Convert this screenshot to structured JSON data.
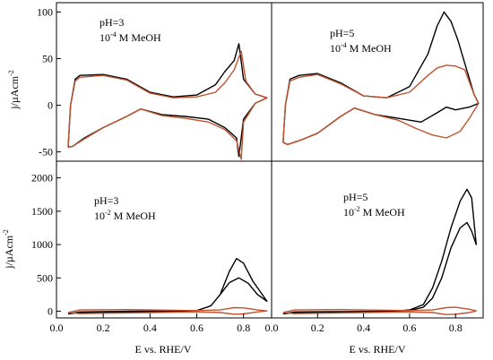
{
  "chart_data": [
    {
      "type": "line",
      "panel": "top-left",
      "annotation": {
        "line1": "pH=3",
        "line2_base": "10",
        "line2_exp": "-4",
        "line2_rest": " M MeOH"
      },
      "xlim": [
        0.0,
        0.92
      ],
      "ylim": [
        -60,
        110
      ],
      "xticks": [],
      "yticks": [
        -50,
        0,
        50,
        100
      ],
      "series": [
        {
          "color": "#000000",
          "values": [
            [
              0.05,
              -45
            ],
            [
              0.06,
              0
            ],
            [
              0.08,
              28
            ],
            [
              0.1,
              32
            ],
            [
              0.2,
              33
            ],
            [
              0.3,
              28
            ],
            [
              0.4,
              14
            ],
            [
              0.5,
              9
            ],
            [
              0.6,
              11
            ],
            [
              0.68,
              22
            ],
            [
              0.72,
              36
            ],
            [
              0.76,
              48
            ],
            [
              0.78,
              66
            ],
            [
              0.8,
              28
            ],
            [
              0.85,
              12
            ],
            [
              0.9,
              8
            ],
            [
              0.85,
              2
            ],
            [
              0.8,
              -15
            ],
            [
              0.78,
              -55
            ],
            [
              0.77,
              -35
            ],
            [
              0.72,
              -24
            ],
            [
              0.65,
              -15
            ],
            [
              0.55,
              -12
            ],
            [
              0.45,
              -10
            ],
            [
              0.36,
              -4
            ],
            [
              0.3,
              -12
            ],
            [
              0.2,
              -24
            ],
            [
              0.12,
              -35
            ],
            [
              0.07,
              -44
            ],
            [
              0.05,
              -45
            ]
          ]
        },
        {
          "color": "#c0522e",
          "values": [
            [
              0.05,
              -45
            ],
            [
              0.06,
              0
            ],
            [
              0.08,
              26
            ],
            [
              0.1,
              30
            ],
            [
              0.2,
              32
            ],
            [
              0.3,
              27
            ],
            [
              0.4,
              13
            ],
            [
              0.5,
              8
            ],
            [
              0.6,
              9
            ],
            [
              0.68,
              14
            ],
            [
              0.72,
              24
            ],
            [
              0.76,
              38
            ],
            [
              0.79,
              58
            ],
            [
              0.81,
              26
            ],
            [
              0.85,
              12
            ],
            [
              0.9,
              8
            ],
            [
              0.85,
              2
            ],
            [
              0.8,
              -18
            ],
            [
              0.79,
              -58
            ],
            [
              0.77,
              -38
            ],
            [
              0.72,
              -26
            ],
            [
              0.65,
              -18
            ],
            [
              0.55,
              -14
            ],
            [
              0.45,
              -11
            ],
            [
              0.36,
              -4
            ],
            [
              0.3,
              -12
            ],
            [
              0.2,
              -24
            ],
            [
              0.12,
              -36
            ],
            [
              0.07,
              -44
            ],
            [
              0.05,
              -45
            ]
          ]
        }
      ]
    },
    {
      "type": "line",
      "panel": "top-right",
      "annotation": {
        "line1": "pH=5",
        "line2_base": "10",
        "line2_exp": "-4",
        "line2_rest": " M MeOH"
      },
      "xlim": [
        0.0,
        0.92
      ],
      "ylim": [
        -60,
        110
      ],
      "xticks": [],
      "yticks": [],
      "series": [
        {
          "color": "#000000",
          "values": [
            [
              0.05,
              -40
            ],
            [
              0.06,
              0
            ],
            [
              0.08,
              28
            ],
            [
              0.12,
              32
            ],
            [
              0.2,
              34
            ],
            [
              0.3,
              24
            ],
            [
              0.4,
              10
            ],
            [
              0.5,
              8
            ],
            [
              0.6,
              20
            ],
            [
              0.68,
              55
            ],
            [
              0.72,
              85
            ],
            [
              0.75,
              100
            ],
            [
              0.78,
              90
            ],
            [
              0.81,
              70
            ],
            [
              0.84,
              45
            ],
            [
              0.88,
              12
            ],
            [
              0.9,
              2
            ],
            [
              0.86,
              -2
            ],
            [
              0.8,
              -5
            ],
            [
              0.76,
              -2
            ],
            [
              0.72,
              -8
            ],
            [
              0.65,
              -18
            ],
            [
              0.55,
              -14
            ],
            [
              0.45,
              -10
            ],
            [
              0.36,
              -3
            ],
            [
              0.3,
              -12
            ],
            [
              0.2,
              -30
            ],
            [
              0.12,
              -38
            ],
            [
              0.07,
              -42
            ],
            [
              0.05,
              -40
            ]
          ]
        },
        {
          "color": "#c0522e",
          "values": [
            [
              0.05,
              -40
            ],
            [
              0.06,
              0
            ],
            [
              0.08,
              26
            ],
            [
              0.12,
              30
            ],
            [
              0.2,
              33
            ],
            [
              0.3,
              23
            ],
            [
              0.4,
              10
            ],
            [
              0.5,
              8
            ],
            [
              0.6,
              14
            ],
            [
              0.68,
              32
            ],
            [
              0.72,
              40
            ],
            [
              0.76,
              43
            ],
            [
              0.8,
              42
            ],
            [
              0.84,
              38
            ],
            [
              0.88,
              12
            ],
            [
              0.9,
              2
            ],
            [
              0.86,
              -14
            ],
            [
              0.82,
              -28
            ],
            [
              0.76,
              -35
            ],
            [
              0.7,
              -32
            ],
            [
              0.63,
              -25
            ],
            [
              0.55,
              -16
            ],
            [
              0.45,
              -10
            ],
            [
              0.36,
              -3
            ],
            [
              0.3,
              -12
            ],
            [
              0.2,
              -30
            ],
            [
              0.12,
              -38
            ],
            [
              0.07,
              -42
            ],
            [
              0.05,
              -40
            ]
          ]
        }
      ]
    },
    {
      "type": "line",
      "panel": "bottom-left",
      "annotation": {
        "line1": "pH=3",
        "line2_base": "10",
        "line2_exp": "-2",
        "line2_rest": " M MeOH"
      },
      "xlim": [
        0.0,
        0.92
      ],
      "ylim": [
        -100,
        2250
      ],
      "xticks": [
        0.0,
        0.2,
        0.4,
        0.6,
        0.8
      ],
      "yticks": [
        0,
        500,
        1000,
        1500,
        2000
      ],
      "series": [
        {
          "color": "#000000",
          "values": [
            [
              0.05,
              -40
            ],
            [
              0.1,
              -20
            ],
            [
              0.3,
              -10
            ],
            [
              0.5,
              -5
            ],
            [
              0.6,
              10
            ],
            [
              0.66,
              80
            ],
            [
              0.7,
              250
            ],
            [
              0.74,
              600
            ],
            [
              0.77,
              790
            ],
            [
              0.8,
              720
            ],
            [
              0.84,
              450
            ],
            [
              0.88,
              250
            ],
            [
              0.9,
              150
            ],
            [
              0.86,
              250
            ],
            [
              0.82,
              420
            ],
            [
              0.78,
              500
            ],
            [
              0.74,
              430
            ],
            [
              0.7,
              250
            ],
            [
              0.66,
              80
            ],
            [
              0.6,
              10
            ],
            [
              0.5,
              5
            ],
            [
              0.3,
              0
            ],
            [
              0.1,
              -10
            ],
            [
              0.05,
              -40
            ]
          ]
        },
        {
          "color": "#c0522e",
          "values": [
            [
              0.05,
              -20
            ],
            [
              0.1,
              20
            ],
            [
              0.3,
              25
            ],
            [
              0.5,
              15
            ],
            [
              0.6,
              10
            ],
            [
              0.7,
              20
            ],
            [
              0.76,
              55
            ],
            [
              0.8,
              50
            ],
            [
              0.86,
              20
            ],
            [
              0.9,
              5
            ],
            [
              0.86,
              -10
            ],
            [
              0.8,
              -40
            ],
            [
              0.76,
              -45
            ],
            [
              0.7,
              -20
            ],
            [
              0.6,
              -10
            ],
            [
              0.5,
              -15
            ],
            [
              0.3,
              -25
            ],
            [
              0.1,
              -35
            ],
            [
              0.05,
              -20
            ]
          ]
        }
      ]
    },
    {
      "type": "line",
      "panel": "bottom-right",
      "annotation": {
        "line1": "pH=5",
        "line2_base": "10",
        "line2_exp": "-2",
        "line2_rest": " M MeOH"
      },
      "xlim": [
        0.0,
        0.92
      ],
      "ylim": [
        -100,
        2250
      ],
      "xticks": [
        0.0,
        0.2,
        0.4,
        0.6,
        0.8
      ],
      "yticks": [],
      "series": [
        {
          "color": "#000000",
          "values": [
            [
              0.05,
              -40
            ],
            [
              0.1,
              -20
            ],
            [
              0.3,
              -10
            ],
            [
              0.5,
              -5
            ],
            [
              0.6,
              20
            ],
            [
              0.66,
              100
            ],
            [
              0.7,
              350
            ],
            [
              0.74,
              750
            ],
            [
              0.78,
              1250
            ],
            [
              0.82,
              1650
            ],
            [
              0.85,
              1830
            ],
            [
              0.87,
              1700
            ],
            [
              0.89,
              1000
            ],
            [
              0.87,
              1200
            ],
            [
              0.85,
              1330
            ],
            [
              0.82,
              1250
            ],
            [
              0.78,
              950
            ],
            [
              0.74,
              500
            ],
            [
              0.7,
              200
            ],
            [
              0.66,
              60
            ],
            [
              0.6,
              10
            ],
            [
              0.5,
              0
            ],
            [
              0.3,
              -5
            ],
            [
              0.1,
              -10
            ],
            [
              0.05,
              -40
            ]
          ]
        },
        {
          "color": "#c0522e",
          "values": [
            [
              0.05,
              -20
            ],
            [
              0.1,
              20
            ],
            [
              0.3,
              25
            ],
            [
              0.5,
              15
            ],
            [
              0.6,
              10
            ],
            [
              0.7,
              20
            ],
            [
              0.76,
              55
            ],
            [
              0.8,
              60
            ],
            [
              0.86,
              30
            ],
            [
              0.89,
              5
            ],
            [
              0.86,
              -20
            ],
            [
              0.8,
              -45
            ],
            [
              0.76,
              -50
            ],
            [
              0.7,
              -20
            ],
            [
              0.6,
              -10
            ],
            [
              0.5,
              -15
            ],
            [
              0.3,
              -25
            ],
            [
              0.1,
              -35
            ],
            [
              0.05,
              -20
            ]
          ]
        }
      ]
    }
  ],
  "axes": {
    "xlabel": "E vs. RHE/V",
    "ylabel_base": "j/µAcm",
    "ylabel_exp": "-2"
  }
}
